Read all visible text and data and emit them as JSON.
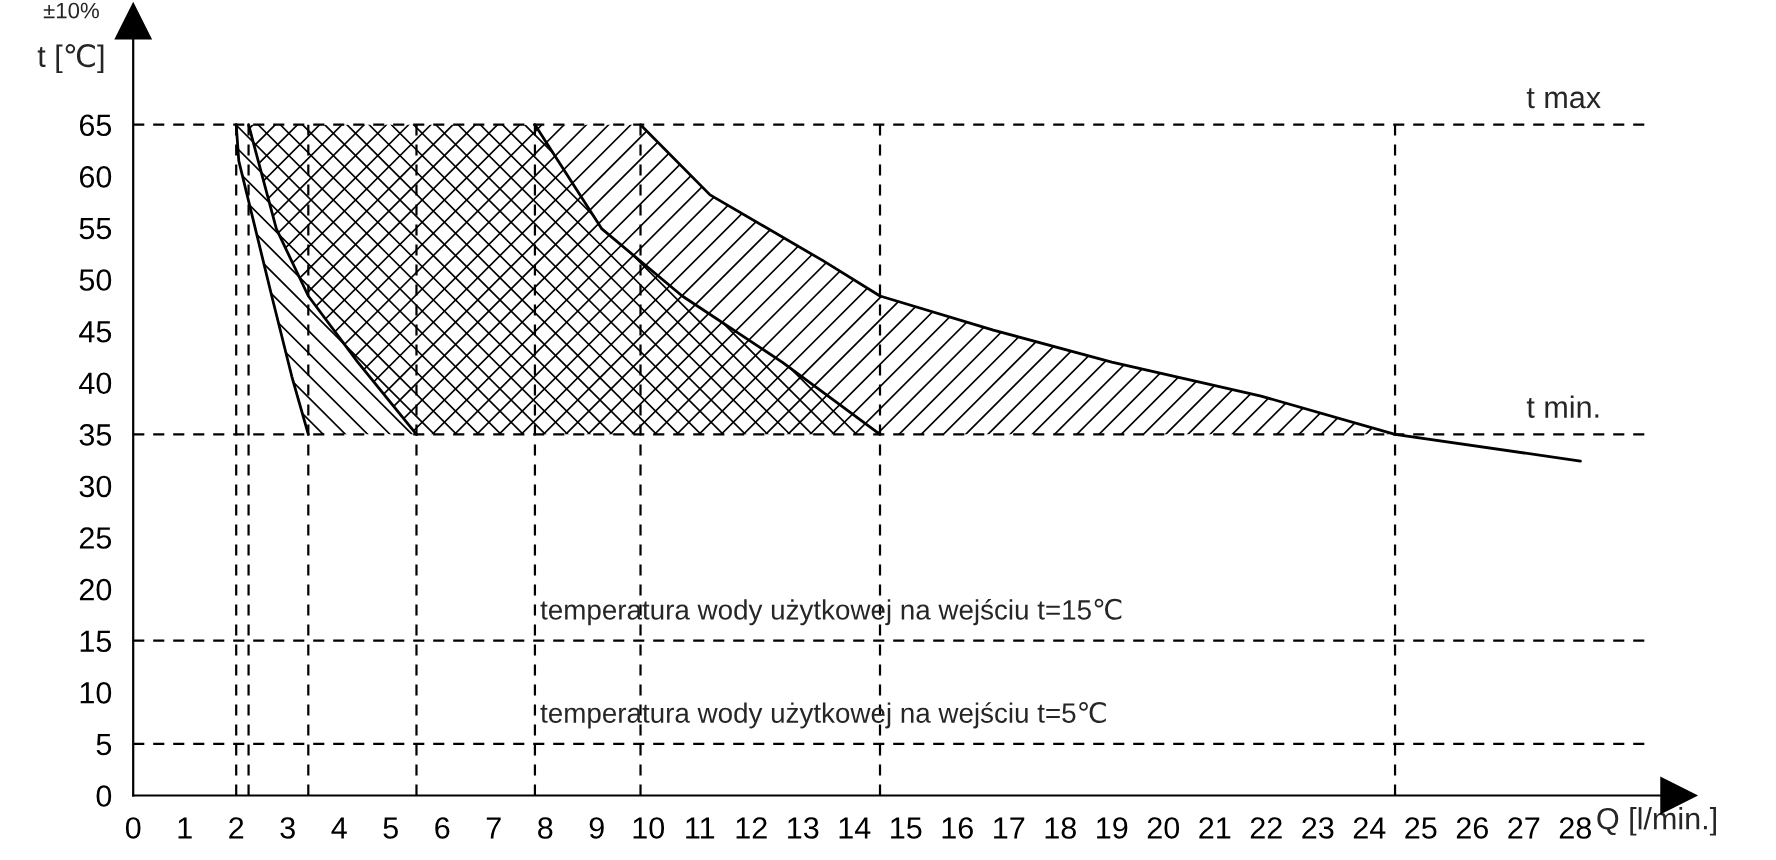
{
  "chart_data": {
    "type": "line",
    "xlabel": "Q [l/min.]",
    "ylabel": "t [℃]",
    "annotations": [
      "±10%"
    ],
    "xlim": [
      0,
      30
    ],
    "ylim": [
      0,
      75
    ],
    "xticks": [
      0,
      1,
      2,
      3,
      4,
      5,
      6,
      7,
      8,
      9,
      10,
      11,
      12,
      13,
      14,
      15,
      16,
      17,
      18,
      19,
      20,
      21,
      22,
      23,
      24,
      25,
      26,
      27,
      28
    ],
    "yticks": [
      0,
      5,
      10,
      15,
      20,
      25,
      30,
      35,
      40,
      45,
      50,
      55,
      60,
      65
    ],
    "grid": false,
    "series": [
      {
        "color": "#000000",
        "x": [
          2.0,
          2.05,
          2.69,
          3.08,
          3.4
        ],
        "values": [
          65,
          61.5,
          48.4,
          40.6,
          35
        ]
      },
      {
        "color": "#000000",
        "x": [
          2.24,
          2.78,
          3.4,
          4.36,
          5.5
        ],
        "values": [
          65,
          54.9,
          48.4,
          42,
          35
        ]
      },
      {
        "color": "#000000",
        "x": [
          7.8,
          9.1,
          10.66,
          12.6,
          14.5
        ],
        "values": [
          65,
          54.9,
          48.4,
          42,
          35
        ]
      },
      {
        "color": "#000000",
        "x": [
          9.85,
          11.2,
          13.4,
          14.5,
          16.7,
          19.0,
          21.9,
          24.5,
          28.1
        ],
        "values": [
          65,
          58.2,
          51.8,
          48.4,
          45.1,
          42,
          38.7,
          35,
          32.4
        ]
      }
    ],
    "ref_lines": [
      {
        "axis": "y",
        "value": 65,
        "label": "t max",
        "line_style": "dashed"
      },
      {
        "axis": "y",
        "value": 35,
        "label": "t min.",
        "line_style": "dashed"
      },
      {
        "axis": "y",
        "value": 15,
        "label": "temperatura wody użytkowej na wejściu t=15℃",
        "line_style": "dashed"
      },
      {
        "axis": "y",
        "value": 5,
        "label": "temperatura wody użytkowej na wejściu t=5℃",
        "line_style": "dashed"
      },
      {
        "axis": "x",
        "value": 2.0,
        "line_style": "dashed"
      },
      {
        "axis": "x",
        "value": 2.24,
        "line_style": "dashed"
      },
      {
        "axis": "x",
        "value": 3.4,
        "line_style": "dashed"
      },
      {
        "axis": "x",
        "value": 5.5,
        "line_style": "dashed"
      },
      {
        "axis": "x",
        "value": 7.8,
        "line_style": "dashed"
      },
      {
        "axis": "x",
        "value": 9.85,
        "line_style": "dashed"
      },
      {
        "axis": "x",
        "value": 14.5,
        "line_style": "dashed"
      },
      {
        "axis": "x",
        "value": 24.5,
        "line_style": "dashed"
      }
    ]
  }
}
